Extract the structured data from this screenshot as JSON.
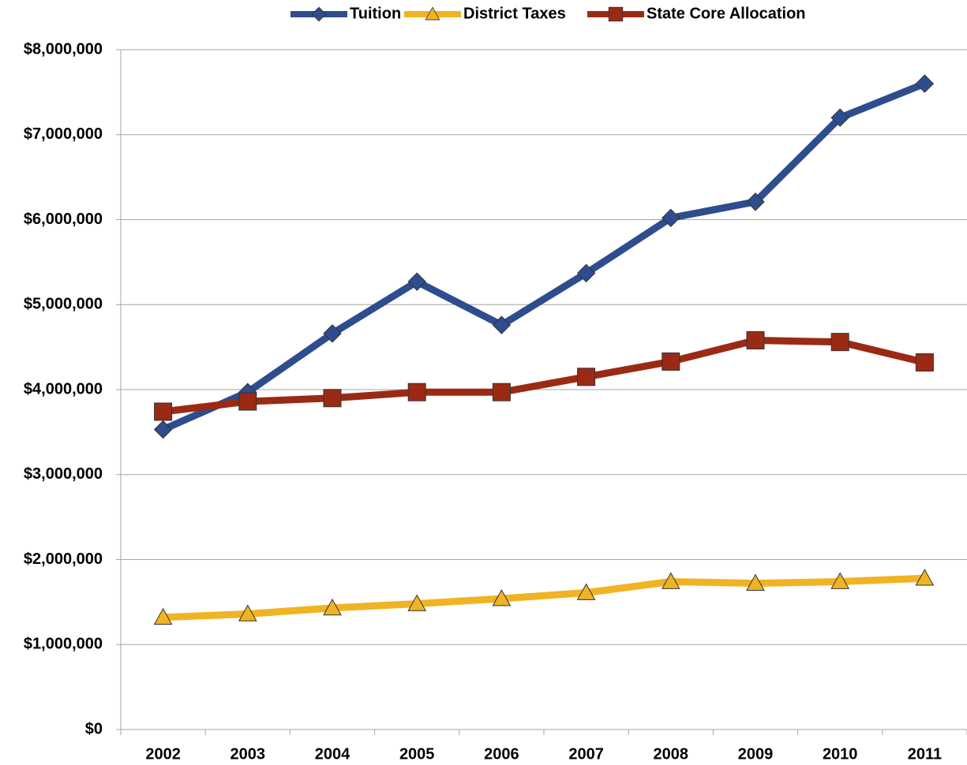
{
  "chart_data": {
    "type": "line",
    "categories": [
      "2002",
      "2003",
      "2004",
      "2005",
      "2006",
      "2007",
      "2008",
      "2009",
      "2010",
      "2011"
    ],
    "series": [
      {
        "name": "Tuition",
        "color": "#2e4d8f",
        "marker": "diamond",
        "values": [
          3530000,
          3970000,
          4660000,
          5270000,
          4760000,
          5370000,
          6020000,
          6210000,
          7200000,
          7600000
        ]
      },
      {
        "name": "District Taxes",
        "color": "#f0b323",
        "marker": "triangle",
        "values": [
          1320000,
          1360000,
          1430000,
          1480000,
          1540000,
          1610000,
          1740000,
          1720000,
          1740000,
          1780000
        ]
      },
      {
        "name": "State Core Allocation",
        "color": "#9b2a14",
        "marker": "square",
        "values": [
          3740000,
          3860000,
          3900000,
          3970000,
          3970000,
          4150000,
          4330000,
          4580000,
          4560000,
          4320000
        ]
      }
    ],
    "ylim": [
      0,
      8000000
    ],
    "yticks": [
      {
        "value": 0,
        "label": "$0"
      },
      {
        "value": 1000000,
        "label": "$1,000,000"
      },
      {
        "value": 2000000,
        "label": "$2,000,000"
      },
      {
        "value": 3000000,
        "label": "$3,000,000"
      },
      {
        "value": 4000000,
        "label": "$4,000,000"
      },
      {
        "value": 5000000,
        "label": "$5,000,000"
      },
      {
        "value": 6000000,
        "label": "$6,000,000"
      },
      {
        "value": 7000000,
        "label": "$7,000,000"
      },
      {
        "value": 8000000,
        "label": "$8,000,000"
      }
    ],
    "grid": true,
    "legend": "top"
  }
}
